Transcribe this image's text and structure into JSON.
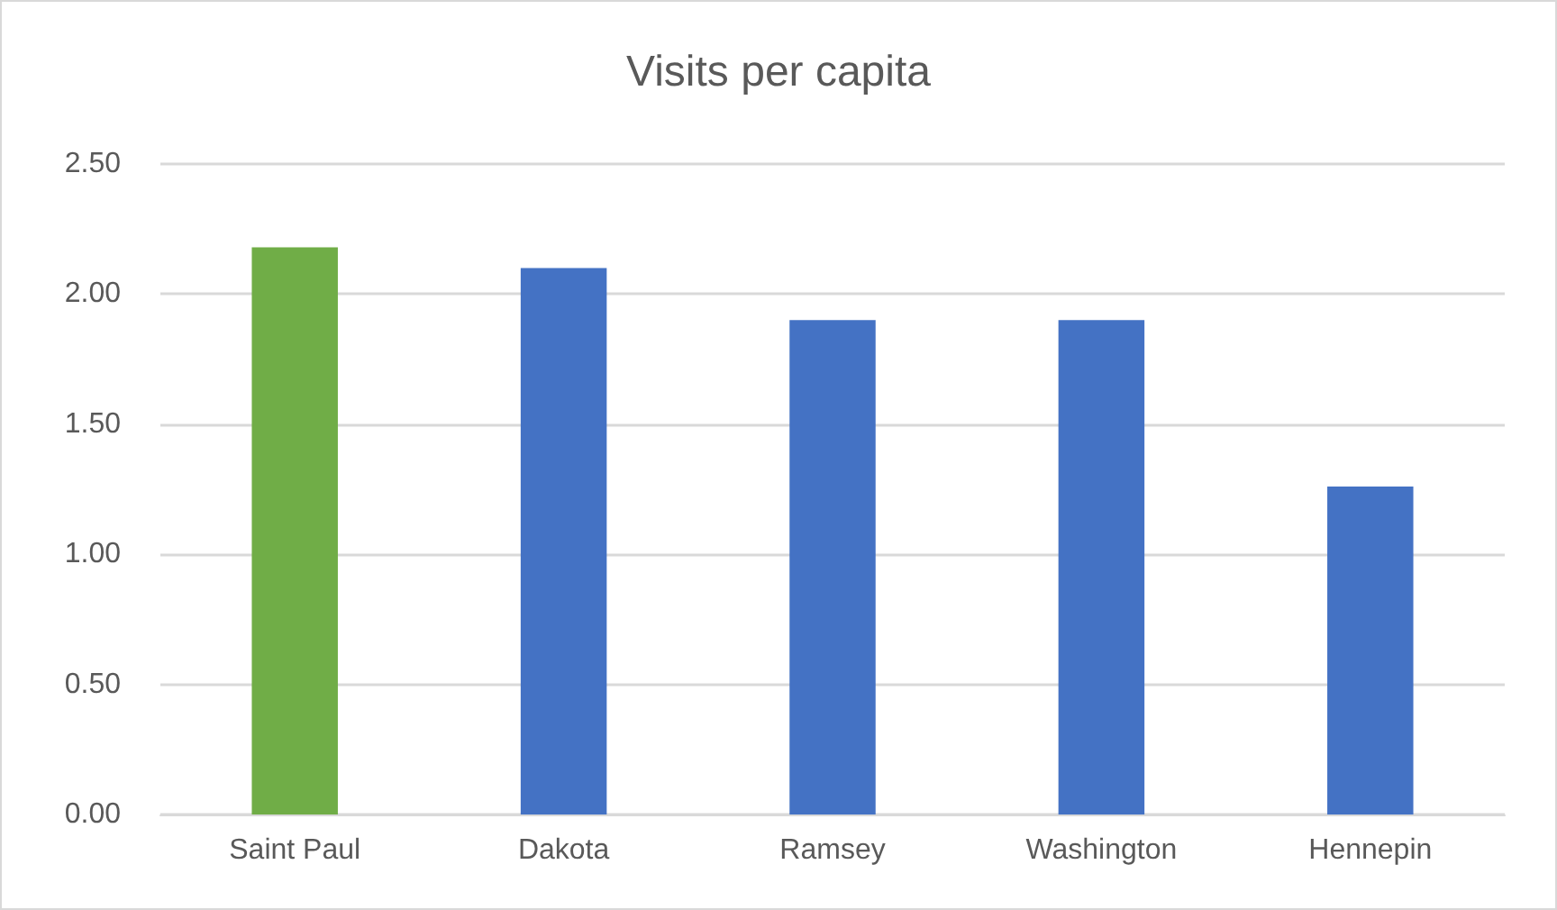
{
  "chart_data": {
    "type": "bar",
    "title": "Visits per capita",
    "categories": [
      "Saint Paul",
      "Dakota",
      "Ramsey",
      "Washington",
      "Hennepin"
    ],
    "values": [
      2.18,
      2.1,
      1.9,
      1.9,
      1.26
    ],
    "colors": [
      "#70ad47",
      "#4472c4",
      "#4472c4",
      "#4472c4",
      "#4472c4"
    ],
    "ylim": [
      0,
      2.5
    ],
    "yticks": [
      {
        "value": 0,
        "label": "0.00"
      },
      {
        "value": 0.5,
        "label": "0.50"
      },
      {
        "value": 1,
        "label": "1.00"
      },
      {
        "value": 1.5,
        "label": "1.50"
      },
      {
        "value": 2,
        "label": "2.00"
      },
      {
        "value": 2.5,
        "label": "2.50"
      }
    ],
    "grid": "y"
  }
}
